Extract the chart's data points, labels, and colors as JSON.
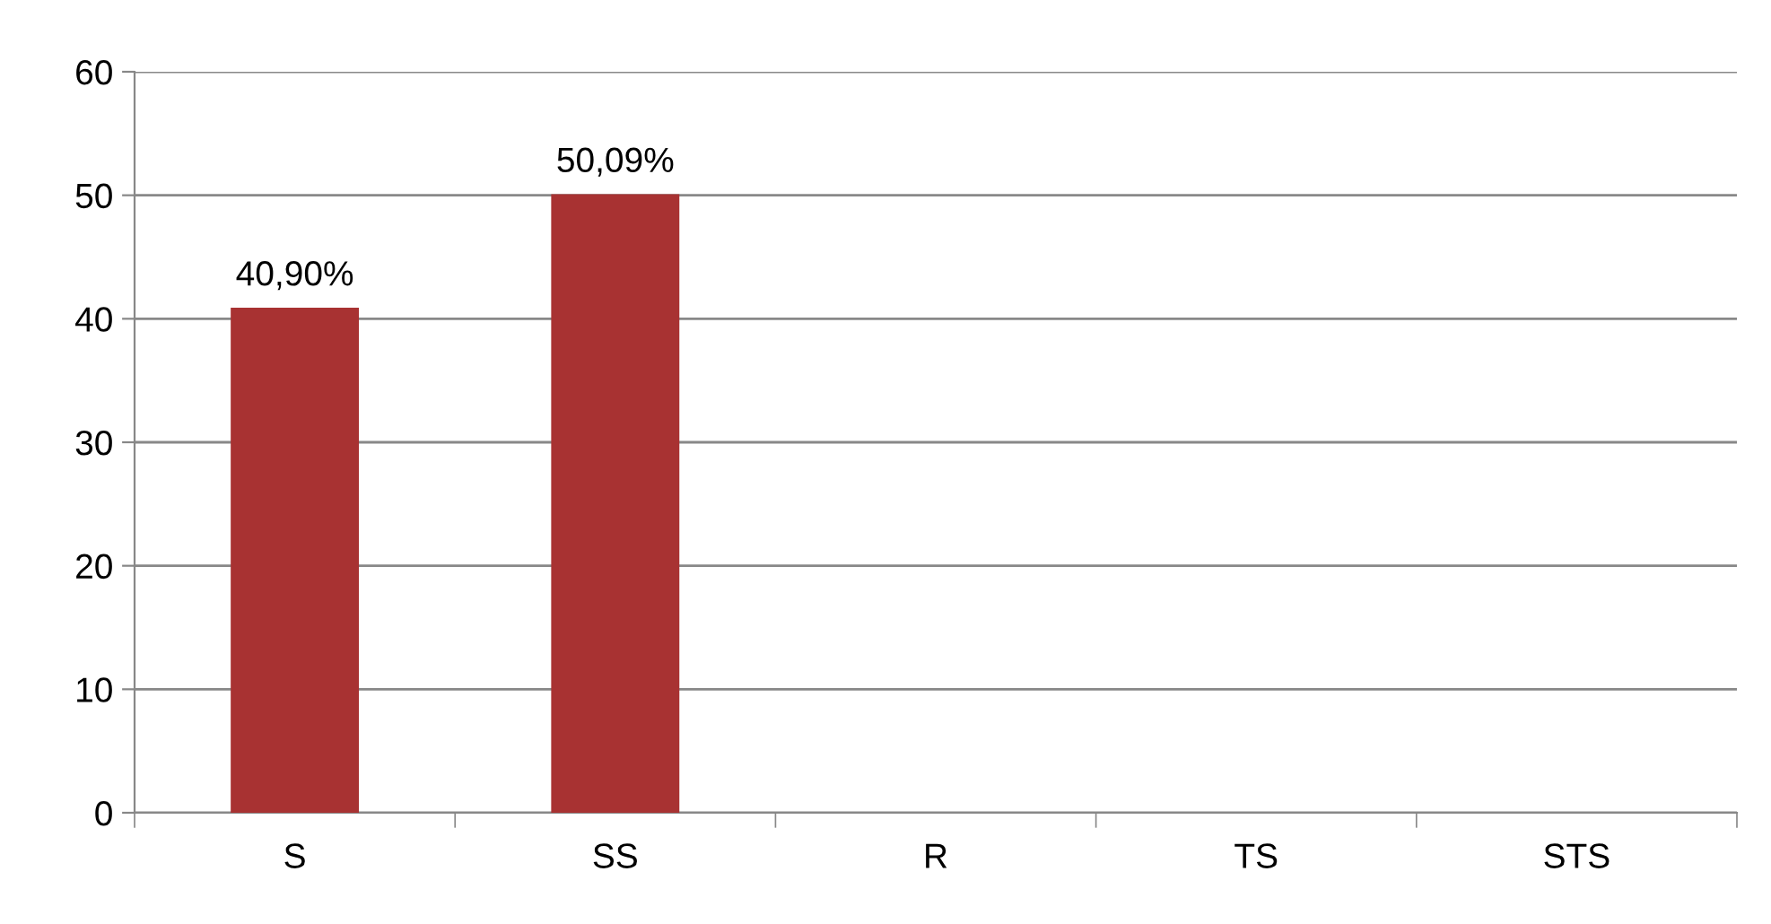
{
  "chart_data": {
    "type": "bar",
    "categories": [
      "S",
      "SS",
      "R",
      "TS",
      "STS"
    ],
    "values": [
      40.9,
      50.09,
      0,
      0,
      0
    ],
    "value_labels": [
      "40,90%",
      "50,09%",
      null,
      null,
      null
    ],
    "color": "#a83232",
    "ylim": [
      0,
      60
    ],
    "yticks": [
      0,
      10,
      20,
      30,
      40,
      50,
      60
    ],
    "grid": "y",
    "legend": false
  }
}
